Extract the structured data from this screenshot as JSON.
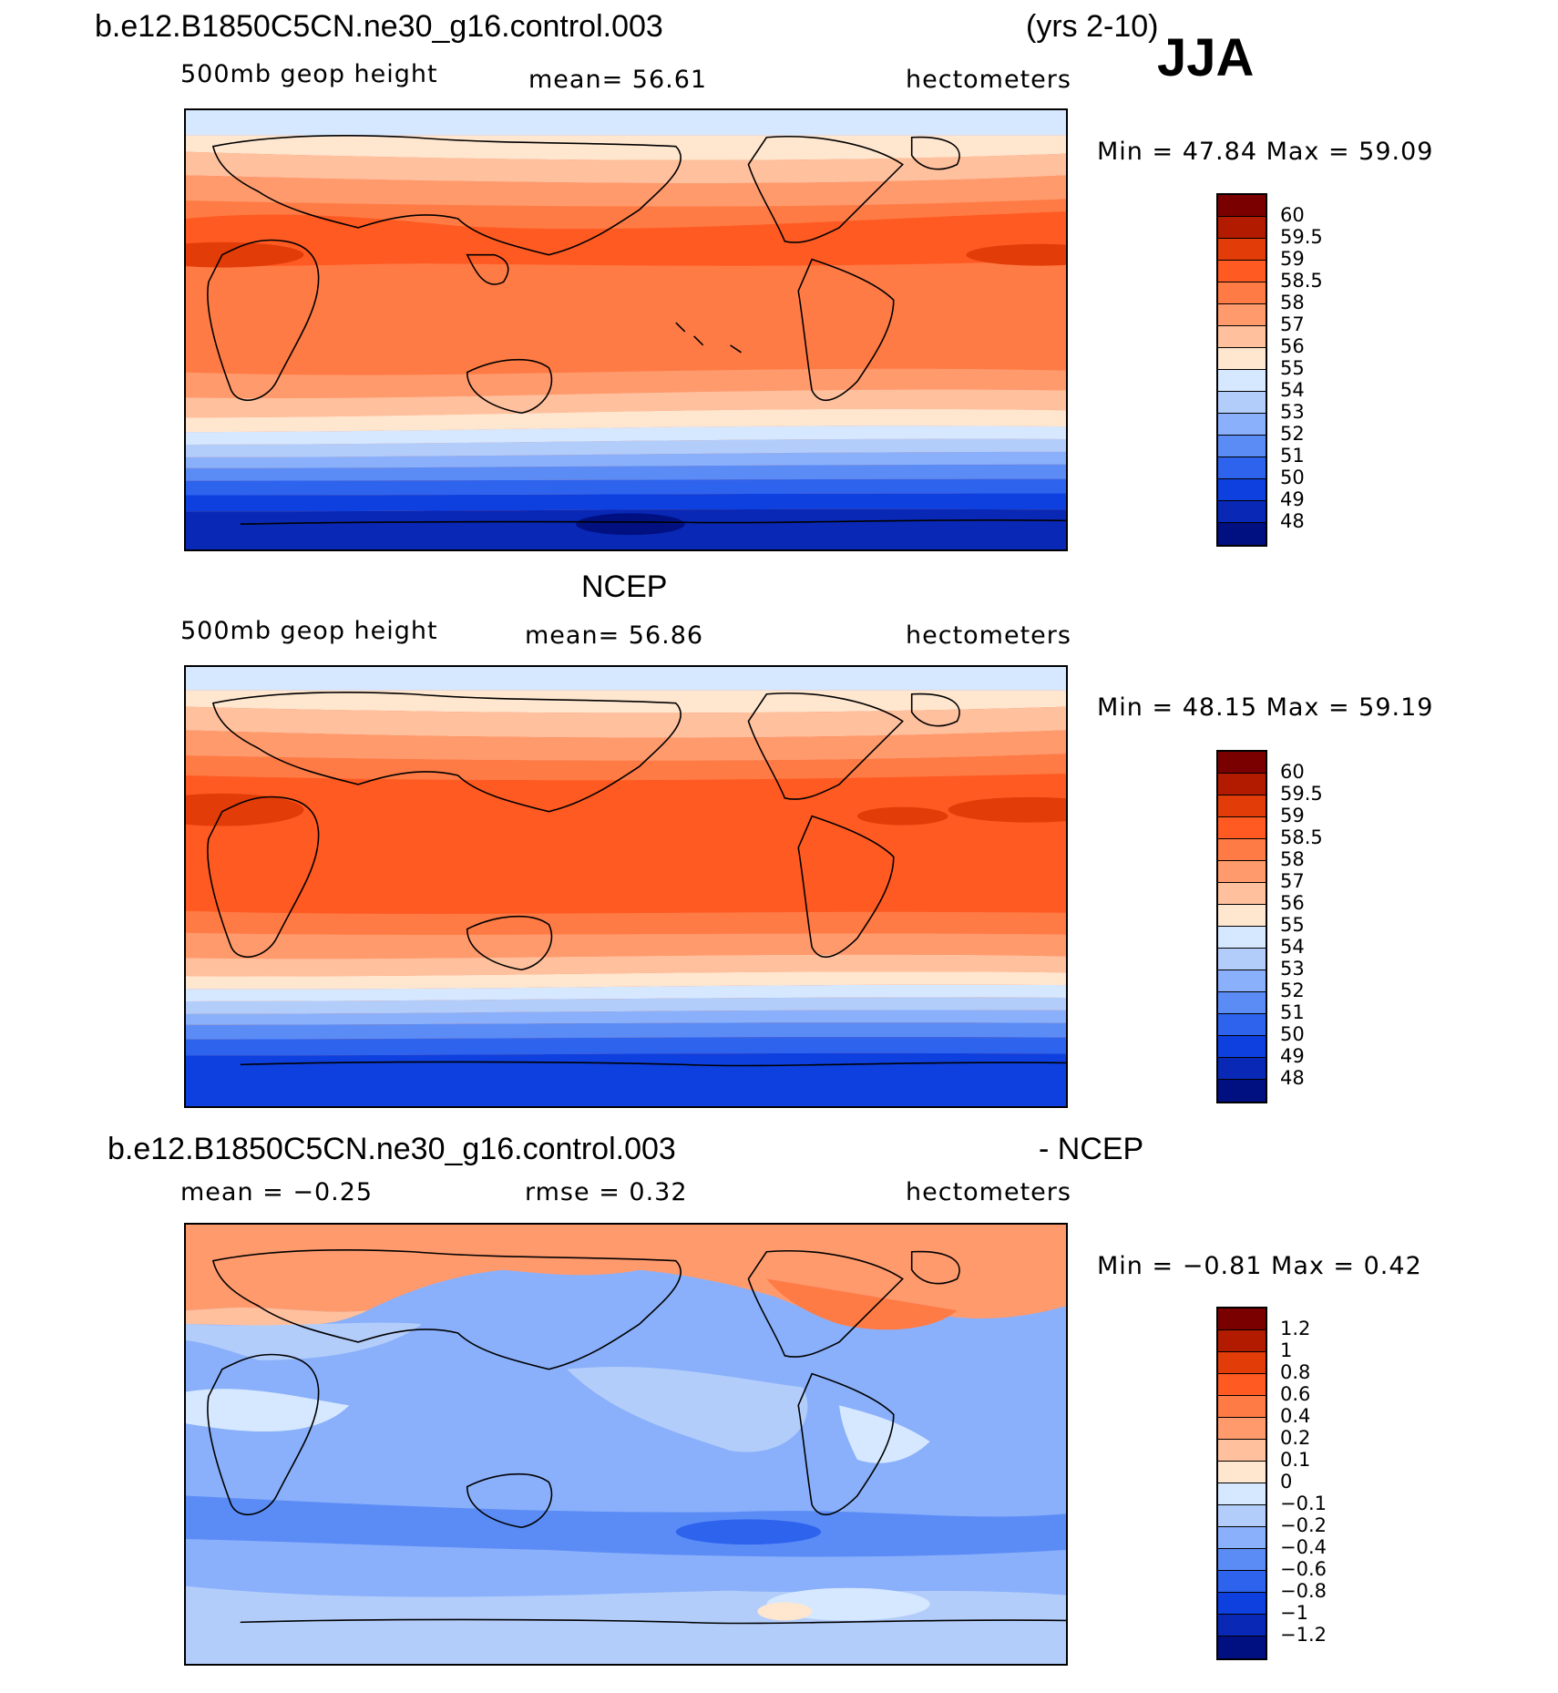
{
  "header": {
    "case_name": "b.e12.B1850C5CN.ne30_g16.control.003",
    "years": "(yrs 2-10)",
    "season": "JJA"
  },
  "panels": [
    {
      "id": "model",
      "title": "",
      "field": "500mb  geop  height",
      "center_label": "mean=   56.61",
      "units": "hectometers",
      "min_max": "Min =    47.84  Max =    59.09"
    },
    {
      "id": "obs",
      "title": "NCEP",
      "field": "500mb  geop  height",
      "center_label": "mean=   56.86",
      "units": "hectometers",
      "min_max": "Min =    48.15  Max =    59.19"
    },
    {
      "id": "diff",
      "title_left": "b.e12.B1850C5CN.ne30_g16.control.003",
      "title_right": "- NCEP",
      "field": "mean =   −0.25",
      "center_label": "rmse =    0.32",
      "units": "hectometers",
      "min_max": "Min =   −0.81  Max =     0.42"
    }
  ],
  "colorbars": {
    "abs_labels": [
      "60",
      "59.5",
      "59",
      "58.5",
      "58",
      "57",
      "56",
      "55",
      "54",
      "53",
      "52",
      "51",
      "50",
      "49",
      "48"
    ],
    "abs_colors": [
      "#7a0000",
      "#b31b00",
      "#e23c08",
      "#ff5a22",
      "#ff7b45",
      "#ff9a6d",
      "#ffc09e",
      "#ffe6cf",
      "#d6e8ff",
      "#b3cdfb",
      "#8ab0fb",
      "#5b8cf6",
      "#2e63ee",
      "#0d40df",
      "#0928b6",
      "#001080"
    ],
    "diff_labels": [
      "1.2",
      "1",
      "0.8",
      "0.6",
      "0.4",
      "0.2",
      "0.1",
      "0",
      "−0.1",
      "−0.2",
      "−0.4",
      "−0.6",
      "−0.8",
      "−1",
      "−1.2"
    ],
    "diff_colors": [
      "#7a0000",
      "#b31b00",
      "#e23c08",
      "#ff5a22",
      "#ff7b45",
      "#ff9a6d",
      "#ffc09e",
      "#ffe6cf",
      "#d6e8ff",
      "#b3cdfb",
      "#8ab0fb",
      "#5b8cf6",
      "#2e63ee",
      "#0d40df",
      "#0928b6",
      "#001080"
    ]
  }
}
